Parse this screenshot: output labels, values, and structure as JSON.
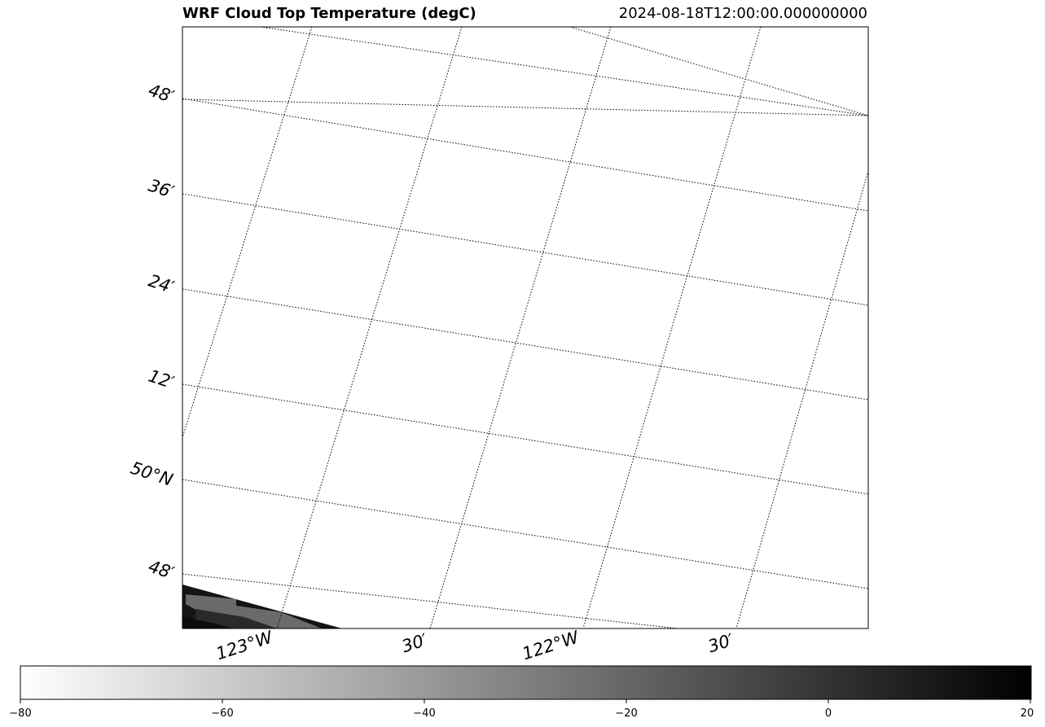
{
  "header": {
    "title": "WRF Cloud Top Temperature (degC)",
    "valid_time": "2024-08-18T12:00:00.000000000"
  },
  "map": {
    "lat_labels": [
      "48′",
      "36′",
      "24′",
      "12′",
      "50°N",
      "48′"
    ],
    "lon_labels": [
      "123°W",
      "30′",
      "122°W",
      "30′"
    ],
    "gridline_style": "dotted",
    "projection": "rotated (Lambert-like)",
    "field_description_visible": "dark cloud-top field only in lower-left corner"
  },
  "colorbar": {
    "colormap": "gray_r",
    "min": -80,
    "max": 20,
    "ticks": [
      "−80",
      "−60",
      "−40",
      "−20",
      "0",
      "20"
    ],
    "color_min": "#ffffff",
    "color_max": "#000000"
  }
}
